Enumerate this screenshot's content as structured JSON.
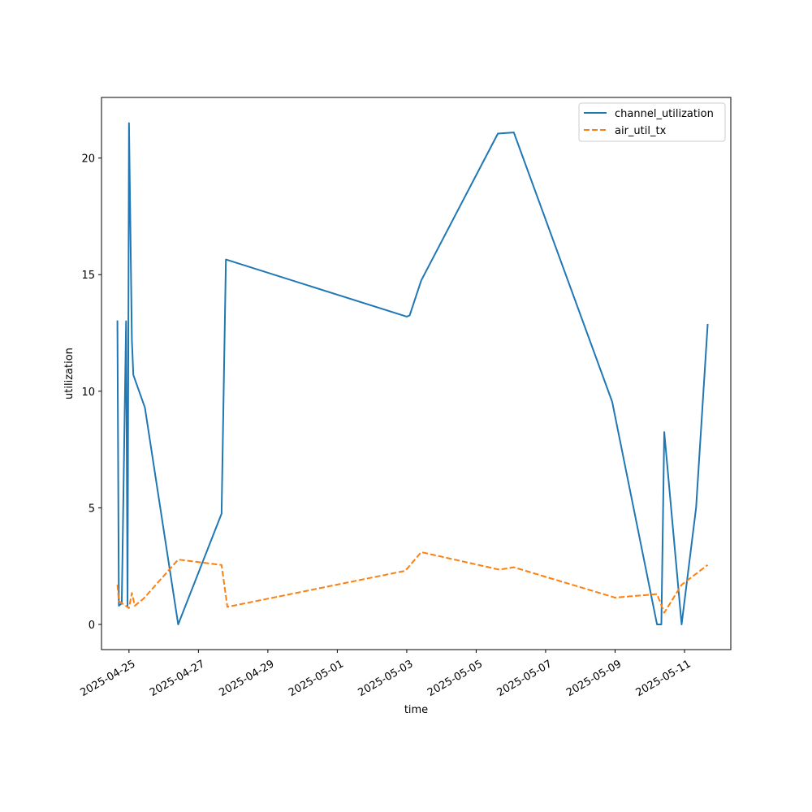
{
  "chart_data": {
    "type": "line",
    "title": "",
    "xlabel": "time",
    "ylabel": "utilization",
    "x_tick_labels": [
      "2025-04-25",
      "2025-04-27",
      "2025-04-29",
      "2025-05-01",
      "2025-05-03",
      "2025-05-05",
      "2025-05-07",
      "2025-05-09",
      "2025-05-11"
    ],
    "y_tick_labels": [
      "0",
      "5",
      "10",
      "15",
      "20"
    ],
    "y_ticks": [
      0,
      5,
      10,
      15,
      20
    ],
    "xlim": [
      "2025-04-24 05:00",
      "2025-05-12 08:00"
    ],
    "ylim": [
      -1.08,
      22.6
    ],
    "grid": false,
    "legend_position": "top-right",
    "series": [
      {
        "name": "channel_utilization",
        "color": "#1f77b4",
        "style": "solid",
        "points": [
          [
            "2025-04-24 16:00",
            13.0
          ],
          [
            "2025-04-24 17:00",
            0.8
          ],
          [
            "2025-04-24 19:00",
            0.9
          ],
          [
            "2025-04-24 22:00",
            13.0
          ],
          [
            "2025-04-24 23:00",
            0.8
          ],
          [
            "2025-04-25 00:00",
            21.5
          ],
          [
            "2025-04-25 02:00",
            12.2
          ],
          [
            "2025-04-25 03:00",
            10.7
          ],
          [
            "2025-04-25 11:00",
            9.3
          ],
          [
            "2025-04-26 10:00",
            0.0
          ],
          [
            "2025-04-27 16:00",
            4.75
          ],
          [
            "2025-04-27 19:00",
            15.65
          ],
          [
            "2025-05-03 00:00",
            13.2
          ],
          [
            "2025-05-03 02:00",
            13.25
          ],
          [
            "2025-05-03 10:00",
            14.75
          ],
          [
            "2025-05-05 15:00",
            21.05
          ],
          [
            "2025-05-06 02:00",
            21.1
          ],
          [
            "2025-05-08 22:00",
            9.55
          ],
          [
            "2025-05-10 05:00",
            0.0
          ],
          [
            "2025-05-10 08:00",
            0.0
          ],
          [
            "2025-05-10 10:00",
            8.25
          ],
          [
            "2025-05-10 22:00",
            0.0
          ],
          [
            "2025-05-11 08:00",
            5.0
          ],
          [
            "2025-05-11 16:00",
            12.85
          ]
        ]
      },
      {
        "name": "air_util_tx",
        "color": "#ff7f0e",
        "style": "dashed",
        "points": [
          [
            "2025-04-24 16:00",
            1.7
          ],
          [
            "2025-04-24 17:00",
            1.0
          ],
          [
            "2025-04-25 00:00",
            0.7
          ],
          [
            "2025-04-25 02:00",
            1.35
          ],
          [
            "2025-04-25 04:00",
            0.8
          ],
          [
            "2025-04-25 10:00",
            1.1
          ],
          [
            "2025-04-26 10:00",
            2.78
          ],
          [
            "2025-04-27 16:00",
            2.55
          ],
          [
            "2025-04-27 20:00",
            0.75
          ],
          [
            "2025-05-02 23:00",
            2.3
          ],
          [
            "2025-05-03 10:00",
            3.1
          ],
          [
            "2025-05-05 16:00",
            2.35
          ],
          [
            "2025-05-06 02:00",
            2.45
          ],
          [
            "2025-05-09 00:00",
            1.15
          ],
          [
            "2025-05-10 05:00",
            1.3
          ],
          [
            "2025-05-10 10:00",
            0.5
          ],
          [
            "2025-05-10 22:00",
            1.7
          ],
          [
            "2025-05-11 16:00",
            2.55
          ]
        ]
      }
    ]
  }
}
